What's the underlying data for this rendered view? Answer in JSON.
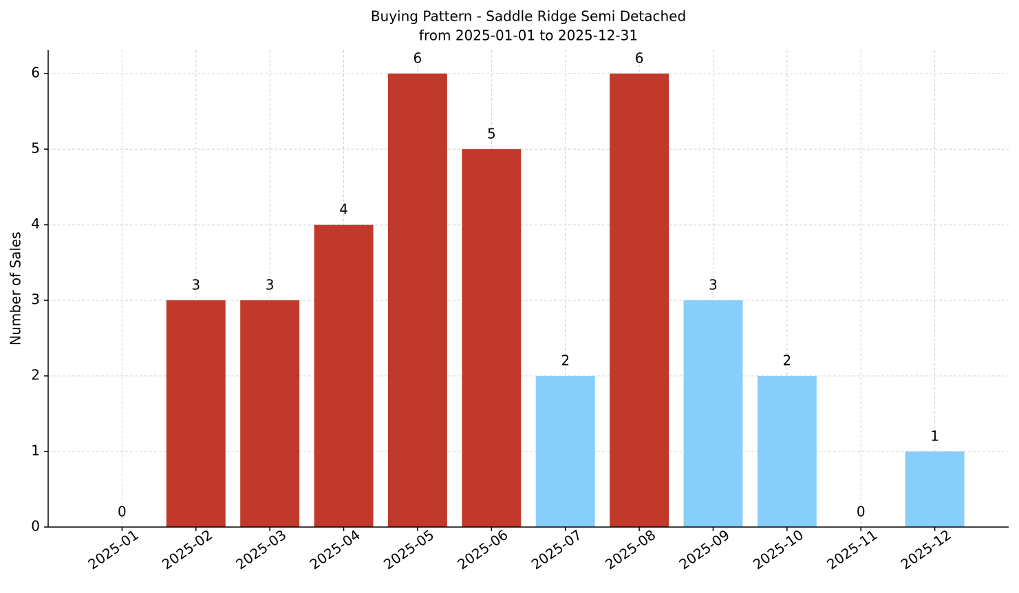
{
  "chart_data": {
    "type": "bar",
    "title": "Buying Pattern - Saddle Ridge Semi Detached",
    "subtitle": "from 2025-01-01 to 2025-12-31",
    "y_label": "Number of Sales",
    "categories": [
      "2025-01",
      "2025-02",
      "2025-03",
      "2025-04",
      "2025-05",
      "2025-06",
      "2025-07",
      "2025-08",
      "2025-09",
      "2025-10",
      "2025-11",
      "2025-12"
    ],
    "values": [
      0,
      3,
      3,
      4,
      6,
      5,
      2,
      6,
      3,
      2,
      0,
      1
    ],
    "colors": [
      "#c0392b",
      "#c0392b",
      "#c0392b",
      "#c0392b",
      "#c0392b",
      "#c0392b",
      "#87cefa",
      "#c0392b",
      "#87cefa",
      "#87cefa",
      "#87cefa",
      "#87cefa"
    ],
    "ylim": [
      0,
      6.31
    ],
    "yticks": [
      0,
      1,
      2,
      3,
      4,
      5,
      6
    ],
    "grid": true
  }
}
